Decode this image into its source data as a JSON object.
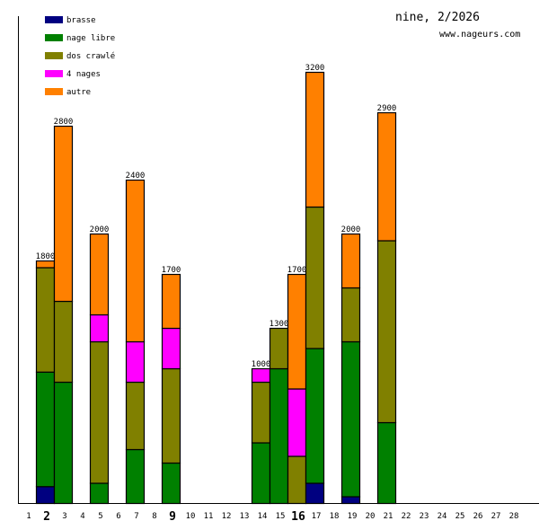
{
  "chart_data": {
    "type": "bar",
    "stacked": true,
    "title": "nine, 2/2026",
    "subtitle": "www.nageurs.com",
    "xlabel": "",
    "ylabel": "",
    "ylim": [
      0,
      3500
    ],
    "grid": false,
    "legend_position": "top-left",
    "categories": [
      "1",
      "2",
      "3",
      "4",
      "5",
      "6",
      "7",
      "8",
      "9",
      "10",
      "11",
      "12",
      "13",
      "14",
      "15",
      "16",
      "17",
      "18",
      "19",
      "20",
      "21",
      "22",
      "23",
      "24",
      "25",
      "26",
      "27",
      "28"
    ],
    "highlighted_categories": [
      "2",
      "9",
      "16"
    ],
    "series": [
      {
        "name": "brasse",
        "color": "#000080",
        "values": [
          0,
          125,
          0,
          0,
          0,
          0,
          0,
          0,
          0,
          0,
          0,
          0,
          0,
          0,
          0,
          0,
          150,
          0,
          50,
          0,
          0,
          0,
          0,
          0,
          0,
          0,
          0,
          0
        ]
      },
      {
        "name": "nage libre",
        "color": "#008000",
        "values": [
          0,
          850,
          900,
          0,
          150,
          0,
          400,
          0,
          300,
          0,
          0,
          0,
          0,
          450,
          1000,
          0,
          1000,
          0,
          1150,
          0,
          600,
          0,
          0,
          0,
          0,
          0,
          0,
          0
        ]
      },
      {
        "name": "dos crawlé",
        "color": "#808000",
        "values": [
          0,
          775,
          600,
          0,
          1050,
          0,
          500,
          0,
          700,
          0,
          0,
          0,
          0,
          450,
          300,
          350,
          1050,
          0,
          400,
          0,
          1350,
          0,
          0,
          0,
          0,
          0,
          0,
          0
        ]
      },
      {
        "name": "4 nages",
        "color": "#FF00FF",
        "values": [
          0,
          0,
          0,
          0,
          200,
          0,
          300,
          0,
          300,
          0,
          0,
          0,
          0,
          100,
          0,
          500,
          0,
          0,
          0,
          0,
          0,
          0,
          0,
          0,
          0,
          0,
          0,
          0
        ]
      },
      {
        "name": "autre",
        "color": "#FF8000",
        "values": [
          0,
          50,
          1300,
          0,
          600,
          0,
          1200,
          0,
          400,
          0,
          0,
          0,
          0,
          0,
          0,
          850,
          1000,
          0,
          400,
          0,
          950,
          0,
          0,
          0,
          0,
          0,
          0,
          0
        ]
      }
    ],
    "totals": [
      0,
      1800,
      2800,
      0,
      2000,
      0,
      2400,
      0,
      1700,
      0,
      0,
      0,
      0,
      1000,
      1300,
      1700,
      3200,
      0,
      2000,
      0,
      2900,
      0,
      0,
      0,
      0,
      0,
      0,
      0
    ]
  }
}
